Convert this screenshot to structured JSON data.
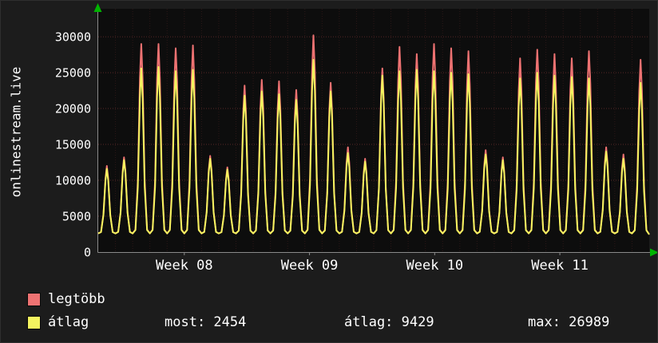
{
  "chart_data": {
    "type": "line",
    "title": "",
    "ylabel": "onlinestream.live",
    "xlabel": "",
    "ylim": [
      0,
      33900
    ],
    "yticks": [
      0,
      5000,
      10000,
      15000,
      20000,
      25000,
      30000
    ],
    "x_week_labels": [
      "Week 08",
      "Week 09",
      "Week 10",
      "Week 11"
    ],
    "grid": true,
    "legend_position": "bottom-left",
    "baseline_value": 2600,
    "last_value": 2454,
    "series": [
      {
        "name": "legtöbb",
        "color": "#ee7272",
        "daily_peaks": [
          12000,
          13200,
          29000,
          29000,
          28400,
          28800,
          13400,
          11800,
          23200,
          24000,
          23800,
          22600,
          30200,
          23600,
          14600,
          13000,
          25600,
          28600,
          27600,
          29000,
          28400,
          28000,
          14200,
          13200,
          27000,
          28200,
          27600,
          27000,
          28000,
          14600,
          13600,
          26800
        ]
      },
      {
        "name": "átlag",
        "color": "#f4f45f",
        "daily_peaks": [
          11600,
          12800,
          25600,
          25800,
          25200,
          25400,
          13000,
          11500,
          21800,
          22400,
          22000,
          21200,
          26800,
          22400,
          13800,
          12600,
          24600,
          25200,
          25400,
          25200,
          25000,
          24800,
          13600,
          12800,
          24200,
          25000,
          24600,
          24400,
          24200,
          14000,
          13000,
          23600
        ]
      }
    ],
    "stats": {
      "most": 2454,
      "atlag": 9429,
      "max": 26989
    }
  },
  "legend": [
    {
      "label": "legtöbb",
      "color": "#ee7272"
    },
    {
      "label": "átlag",
      "color": "#f4f45f"
    }
  ],
  "footer": {
    "most": "most: 2454",
    "atlag": "átlag: 9429",
    "max": "max: 26989"
  },
  "colors": {
    "background": "#1c1c1c",
    "plot_background": "#0d0d0d",
    "grid": "#ff6060",
    "axis_arrow": "#00b400",
    "text": "#ffffff"
  }
}
